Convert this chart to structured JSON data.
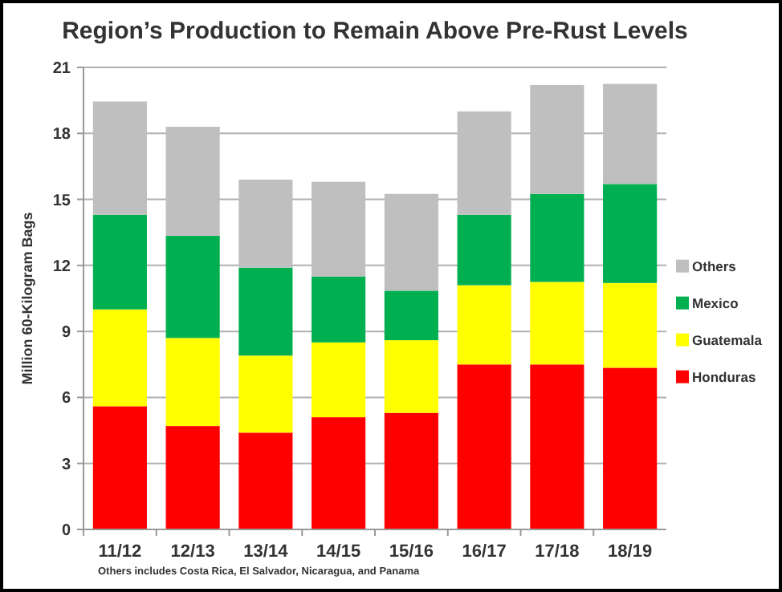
{
  "chart_data": {
    "type": "bar",
    "stacked": true,
    "title": "Region’s Production to Remain Above Pre-Rust Levels",
    "ylabel": "Million 60-Kilogram Bags",
    "categories": [
      "11/12",
      "12/13",
      "13/14",
      "14/15",
      "15/16",
      "16/17",
      "17/18",
      "18/19"
    ],
    "series": [
      {
        "name": "Honduras",
        "color": "#ff0000",
        "values": [
          5.6,
          4.7,
          4.4,
          5.1,
          5.3,
          7.5,
          7.5,
          7.35
        ]
      },
      {
        "name": "Guatemala",
        "color": "#ffff00",
        "values": [
          4.4,
          4.0,
          3.5,
          3.4,
          3.3,
          3.6,
          3.75,
          3.85
        ]
      },
      {
        "name": "Mexico",
        "color": "#00b050",
        "values": [
          4.3,
          4.65,
          4.0,
          3.0,
          2.25,
          3.2,
          4.0,
          4.5
        ]
      },
      {
        "name": "Others",
        "color": "#bfbfbf",
        "values": [
          5.15,
          4.95,
          4.0,
          4.3,
          4.4,
          4.7,
          4.95,
          4.55
        ]
      }
    ],
    "ylim": [
      0,
      21
    ],
    "yticks": [
      0,
      3,
      6,
      9,
      12,
      15,
      18,
      21
    ],
    "grid": "y",
    "legend": "right",
    "annotations": [
      "Others includes Costa Rica, El Salvador, Nicaragua, and Panama"
    ]
  }
}
